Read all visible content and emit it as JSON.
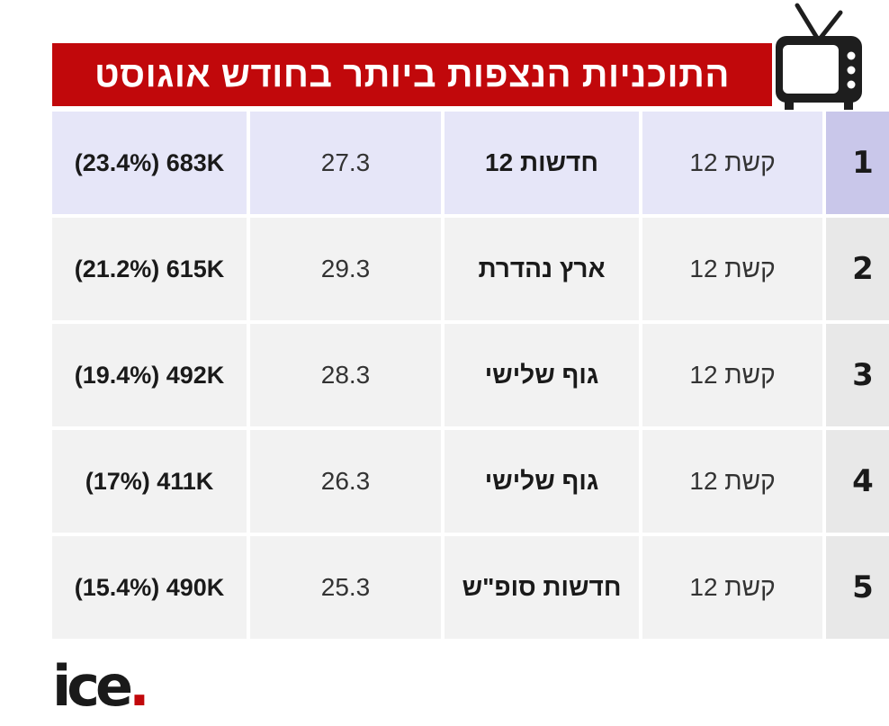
{
  "title": "התוכניות הנצפות ביותר בחודש אוגוסט",
  "rows": [
    {
      "rank": "1",
      "channel": "קשת 12",
      "show": "חדשות 12",
      "rating": "27.3",
      "views": "(23.4%) 683K",
      "highlight": true
    },
    {
      "rank": "2",
      "channel": "קשת 12",
      "show": "ארץ נהדרת",
      "rating": "29.3",
      "views": "(21.2%) 615K",
      "highlight": false
    },
    {
      "rank": "3",
      "channel": "קשת 12",
      "show": "גוף שלישי",
      "rating": "28.3",
      "views": "(19.4%) 492K",
      "highlight": false
    },
    {
      "rank": "4",
      "channel": "קשת 12",
      "show": "גוף שלישי",
      "rating": "26.3",
      "views": "(17%) 411K",
      "highlight": false
    },
    {
      "rank": "5",
      "channel": "קשת 12",
      "show": "חדשות סופ\"ש",
      "rating": "25.3",
      "views": "(15.4%) 490K",
      "highlight": false
    }
  ],
  "logo": {
    "text": "ice",
    "dot": "."
  },
  "icons": {
    "tv": "tv-icon"
  },
  "colors": {
    "accent": "#c1080b",
    "highlight_row": "#e6e6f8",
    "highlight_rank": "#c9c7ea",
    "row": "#f2f2f2"
  }
}
